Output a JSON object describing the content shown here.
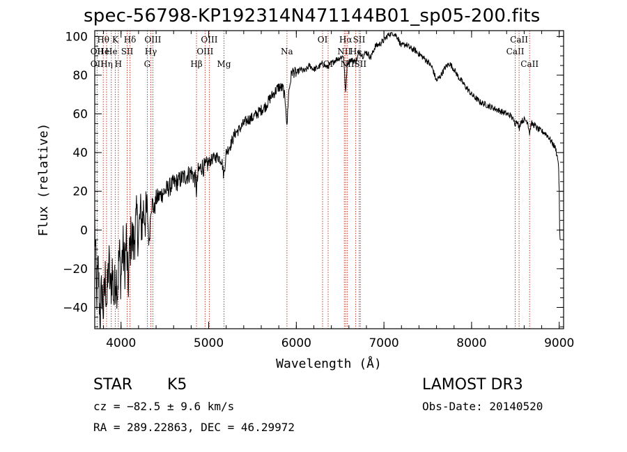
{
  "chart_data": {
    "type": "line",
    "title": "spec-56798-KP192314N471144B01_sp05-200.fits",
    "xlabel": "Wavelength (Å)",
    "ylabel": "Flux (relative)",
    "xlim": [
      3700,
      9050
    ],
    "ylim": [
      -51,
      103
    ],
    "xticks": [
      4000,
      5000,
      6000,
      7000,
      8000,
      9000
    ],
    "yticks": [
      -40,
      -20,
      0,
      20,
      40,
      60,
      80,
      100
    ],
    "grid": false,
    "series": [
      {
        "name": "Flux",
        "points": [
          [
            3700,
            5
          ],
          [
            3720,
            -35
          ],
          [
            3740,
            -20
          ],
          [
            3760,
            -45
          ],
          [
            3780,
            -30
          ],
          [
            3800,
            -42
          ],
          [
            3820,
            -25
          ],
          [
            3840,
            -38
          ],
          [
            3860,
            -15
          ],
          [
            3880,
            -32
          ],
          [
            3900,
            -20
          ],
          [
            3920,
            -36
          ],
          [
            3940,
            -22
          ],
          [
            3960,
            -30
          ],
          [
            3980,
            -12
          ],
          [
            4000,
            -25
          ],
          [
            4020,
            -8
          ],
          [
            4040,
            -20
          ],
          [
            4060,
            -5
          ],
          [
            4080,
            -30
          ],
          [
            4100,
            -10
          ],
          [
            4120,
            -2
          ],
          [
            4140,
            -8
          ],
          [
            4160,
            0
          ],
          [
            4180,
            5
          ],
          [
            4200,
            -3
          ],
          [
            4220,
            8
          ],
          [
            4240,
            3
          ],
          [
            4260,
            12
          ],
          [
            4280,
            6
          ],
          [
            4300,
            10
          ],
          [
            4320,
            -8
          ],
          [
            4340,
            12
          ],
          [
            4360,
            14
          ],
          [
            4380,
            10
          ],
          [
            4400,
            16
          ],
          [
            4450,
            18
          ],
          [
            4500,
            20
          ],
          [
            4550,
            22
          ],
          [
            4600,
            24
          ],
          [
            4650,
            25
          ],
          [
            4700,
            27
          ],
          [
            4750,
            28
          ],
          [
            4800,
            30
          ],
          [
            4850,
            26
          ],
          [
            4861,
            20
          ],
          [
            4880,
            30
          ],
          [
            4920,
            33
          ],
          [
            4960,
            32
          ],
          [
            5000,
            35
          ],
          [
            5050,
            37
          ],
          [
            5100,
            38
          ],
          [
            5150,
            36
          ],
          [
            5172,
            28
          ],
          [
            5200,
            40
          ],
          [
            5250,
            44
          ],
          [
            5300,
            50
          ],
          [
            5350,
            52
          ],
          [
            5400,
            55
          ],
          [
            5450,
            57
          ],
          [
            5500,
            58
          ],
          [
            5550,
            60
          ],
          [
            5600,
            62
          ],
          [
            5650,
            64
          ],
          [
            5700,
            68
          ],
          [
            5750,
            71
          ],
          [
            5800,
            74
          ],
          [
            5850,
            73
          ],
          [
            5880,
            65
          ],
          [
            5893,
            52
          ],
          [
            5910,
            70
          ],
          [
            5950,
            82
          ],
          [
            6000,
            81
          ],
          [
            6050,
            83
          ],
          [
            6100,
            82
          ],
          [
            6150,
            85
          ],
          [
            6200,
            83
          ],
          [
            6250,
            84
          ],
          [
            6300,
            86
          ],
          [
            6350,
            84
          ],
          [
            6400,
            86
          ],
          [
            6450,
            88
          ],
          [
            6500,
            89
          ],
          [
            6540,
            90
          ],
          [
            6563,
            70
          ],
          [
            6580,
            86
          ],
          [
            6620,
            88
          ],
          [
            6680,
            87
          ],
          [
            6720,
            92
          ],
          [
            6760,
            90
          ],
          [
            6800,
            92
          ],
          [
            6850,
            89
          ],
          [
            6900,
            95
          ],
          [
            6950,
            96
          ],
          [
            7000,
            98
          ],
          [
            7050,
            101
          ],
          [
            7100,
            102
          ],
          [
            7150,
            100
          ],
          [
            7200,
            95
          ],
          [
            7250,
            96
          ],
          [
            7300,
            94
          ],
          [
            7350,
            93
          ],
          [
            7400,
            91
          ],
          [
            7450,
            89
          ],
          [
            7500,
            87
          ],
          [
            7550,
            84
          ],
          [
            7600,
            77
          ],
          [
            7650,
            80
          ],
          [
            7700,
            84
          ],
          [
            7750,
            86
          ],
          [
            7800,
            83
          ],
          [
            7850,
            79
          ],
          [
            7900,
            76
          ],
          [
            7950,
            73
          ],
          [
            8000,
            70
          ],
          [
            8050,
            68
          ],
          [
            8100,
            66
          ],
          [
            8150,
            65
          ],
          [
            8200,
            64
          ],
          [
            8250,
            63
          ],
          [
            8300,
            62
          ],
          [
            8350,
            61
          ],
          [
            8400,
            60
          ],
          [
            8450,
            59
          ],
          [
            8498,
            55
          ],
          [
            8520,
            57
          ],
          [
            8542,
            52
          ],
          [
            8560,
            56
          ],
          [
            8600,
            57
          ],
          [
            8640,
            56
          ],
          [
            8662,
            50
          ],
          [
            8680,
            55
          ],
          [
            8720,
            54
          ],
          [
            8760,
            52
          ],
          [
            8800,
            51
          ],
          [
            8840,
            50
          ],
          [
            8880,
            48
          ],
          [
            8920,
            45
          ],
          [
            8960,
            42
          ],
          [
            8990,
            35
          ],
          [
            9000,
            20
          ],
          [
            9005,
            0
          ],
          [
            9010,
            -5
          ]
        ]
      }
    ],
    "lines": [
      {
        "w": 3727,
        "labels": [
          {
            "t": "OII",
            "r": 2
          },
          {
            "t": "OII",
            "r": 3
          }
        ]
      },
      {
        "w": 3797,
        "labels": [
          {
            "t": "Hθ",
            "r": 1
          },
          {
            "t": "He",
            "r": 2
          }
        ]
      },
      {
        "w": 3835,
        "labels": [
          {
            "t": "Hη",
            "r": 3
          }
        ]
      },
      {
        "w": 3889,
        "labels": [
          {
            "t": "He",
            "r": 2
          }
        ]
      },
      {
        "w": 3934,
        "labels": [
          {
            "t": "K",
            "r": 1
          }
        ]
      },
      {
        "w": 3969,
        "labels": [
          {
            "t": "H",
            "r": 3
          }
        ]
      },
      {
        "w": 4070,
        "labels": [
          {
            "t": "SII",
            "r": 2
          }
        ]
      },
      {
        "w": 4102,
        "labels": [
          {
            "t": "Hδ",
            "r": 1
          }
        ]
      },
      {
        "w": 4300,
        "labels": [
          {
            "t": "G",
            "r": 3
          }
        ]
      },
      {
        "w": 4340,
        "labels": [
          {
            "t": "Hγ",
            "r": 2
          }
        ]
      },
      {
        "w": 4363,
        "labels": [
          {
            "t": "OIII",
            "r": 1
          }
        ]
      },
      {
        "w": 4861,
        "labels": [
          {
            "t": "Hβ",
            "r": 3
          }
        ]
      },
      {
        "w": 4959,
        "labels": [
          {
            "t": "OIII",
            "r": 2
          }
        ]
      },
      {
        "w": 5007,
        "labels": [
          {
            "t": "OIII",
            "r": 1
          }
        ]
      },
      {
        "w": 5175,
        "labels": [
          {
            "t": "Mg",
            "r": 3
          }
        ]
      },
      {
        "w": 5893,
        "labels": [
          {
            "t": "Na",
            "r": 2
          }
        ]
      },
      {
        "w": 6300,
        "labels": [
          {
            "t": "OI",
            "r": 1
          }
        ]
      },
      {
        "w": 6363,
        "labels": [
          {
            "t": "OI",
            "r": 3
          }
        ]
      },
      {
        "w": 6548,
        "labels": [
          {
            "t": "NII",
            "r": 2
          }
        ]
      },
      {
        "w": 6563,
        "labels": [
          {
            "t": "Hα",
            "r": 1
          }
        ]
      },
      {
        "w": 6583,
        "labels": [
          {
            "t": "NII",
            "r": 3
          }
        ]
      },
      {
        "w": 6678,
        "labels": [
          {
            "t": "He",
            "r": 2
          }
        ]
      },
      {
        "w": 6717,
        "labels": [
          {
            "t": "SII",
            "r": 1
          }
        ]
      },
      {
        "w": 6731,
        "labels": [
          {
            "t": "SII",
            "r": 3
          }
        ]
      },
      {
        "w": 8498,
        "labels": [
          {
            "t": "CaII",
            "r": 2
          }
        ]
      },
      {
        "w": 8542,
        "labels": [
          {
            "t": "CaII",
            "r": 1
          }
        ]
      },
      {
        "w": 8662,
        "labels": [
          {
            "t": "CaII",
            "r": 3
          }
        ]
      }
    ]
  },
  "info": {
    "object_class": "STAR",
    "subclass": "K5",
    "survey": "LAMOST DR3",
    "cz": "cz = −82.5 ± 9.6 km/s",
    "obs_date": "Obs-Date: 20140520",
    "coords": "RA = 289.22863, DEC =  46.29972"
  },
  "colors": {
    "line": "#000000",
    "marker": "#c0392b"
  }
}
